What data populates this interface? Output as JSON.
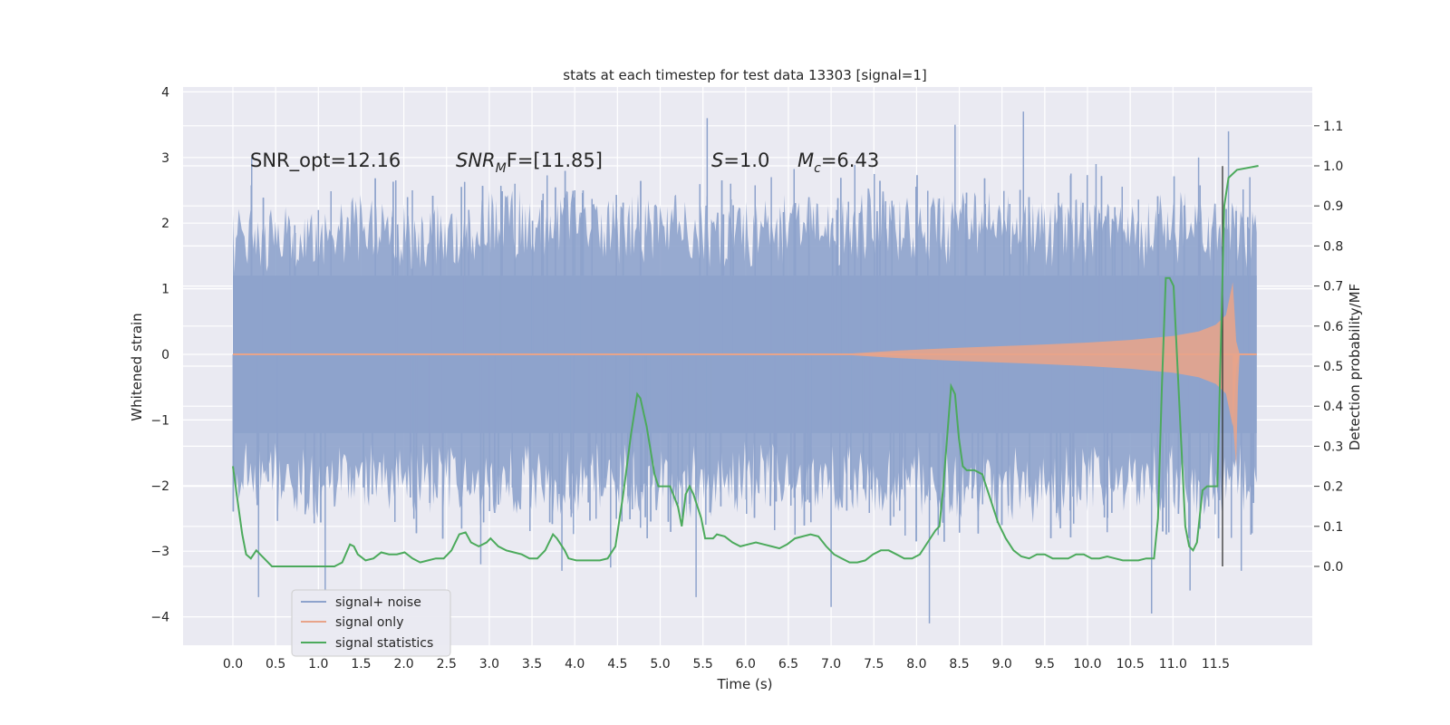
{
  "chart_data": {
    "type": "line",
    "title": "stats at each timestep for test data 13303 [signal=1]",
    "xlabel": "Time (s)",
    "ylabel": "Whitened strain",
    "y2label": "Detection probability/MF",
    "xlim": [
      -0.58,
      12.45
    ],
    "ylim": [
      -4.45,
      4.1
    ],
    "y2lim": [
      -0.2,
      1.2
    ],
    "x_ticks": [
      "0.0",
      "0.5",
      "1.0",
      "1.5",
      "2.0",
      "2.5",
      "3.0",
      "3.5",
      "4.0",
      "4.5",
      "5.0",
      "5.5",
      "6.0",
      "6.5",
      "7.0",
      "7.5",
      "8.0",
      "8.5",
      "9.0",
      "9.5",
      "10.0",
      "10.5",
      "11.0",
      "11.5"
    ],
    "y_ticks": [
      "4",
      "3",
      "2",
      "1",
      "0",
      "−1",
      "−2",
      "−3",
      "−4"
    ],
    "y2_ticks": [
      "1.1",
      "1.0",
      "0.9",
      "0.8",
      "0.7",
      "0.6",
      "0.5",
      "0.4",
      "0.3",
      "0.2",
      "0.1",
      "0.0"
    ],
    "grid": true,
    "legend_position": "lower-left",
    "annotations": {
      "snr_opt": "SNR_opt=12.16",
      "snr_mf_label": "SNR",
      "snr_mf_sub": "M",
      "snr_mf_rest": "F=[11.85]",
      "s_label": "S",
      "s_value": "=1.0",
      "mc_label": "M",
      "mc_sub": "c",
      "mc_value": "=6.43"
    },
    "marker_line_x": 11.58,
    "series": [
      {
        "name": "signal+ noise",
        "color": "#8ea3cc",
        "t_range": [
          0.0,
          11.98
        ],
        "upper_envelope": [
          [
            0.0,
            2.2
          ],
          [
            0.5,
            2.3
          ],
          [
            1.0,
            2.2
          ],
          [
            1.5,
            2.5
          ],
          [
            2.0,
            2.3
          ],
          [
            2.5,
            2.3
          ],
          [
            3.0,
            2.6
          ],
          [
            3.5,
            2.5
          ],
          [
            4.0,
            2.5
          ],
          [
            4.5,
            2.4
          ],
          [
            5.0,
            2.6
          ],
          [
            5.5,
            2.3
          ],
          [
            6.0,
            2.4
          ],
          [
            6.5,
            2.5
          ],
          [
            7.0,
            2.4
          ],
          [
            7.5,
            2.6
          ],
          [
            8.0,
            2.4
          ],
          [
            8.5,
            2.5
          ],
          [
            9.0,
            2.5
          ],
          [
            9.5,
            2.4
          ],
          [
            10.0,
            2.4
          ],
          [
            10.5,
            2.3
          ],
          [
            11.0,
            2.5
          ],
          [
            11.5,
            2.4
          ],
          [
            11.98,
            2.2
          ]
        ],
        "lower_envelope": [
          [
            0.0,
            -2.2
          ],
          [
            0.5,
            -2.4
          ],
          [
            1.0,
            -2.5
          ],
          [
            1.5,
            -2.3
          ],
          [
            2.0,
            -2.4
          ],
          [
            2.5,
            -2.5
          ],
          [
            3.0,
            -2.5
          ],
          [
            3.5,
            -2.4
          ],
          [
            4.0,
            -2.5
          ],
          [
            4.5,
            -2.3
          ],
          [
            5.0,
            -2.5
          ],
          [
            5.5,
            -2.5
          ],
          [
            6.0,
            -2.4
          ],
          [
            6.5,
            -2.4
          ],
          [
            7.0,
            -2.4
          ],
          [
            7.5,
            -2.4
          ],
          [
            8.0,
            -2.5
          ],
          [
            8.5,
            -2.5
          ],
          [
            9.0,
            -2.5
          ],
          [
            9.5,
            -2.6
          ],
          [
            10.0,
            -2.5
          ],
          [
            10.5,
            -2.4
          ],
          [
            11.0,
            -2.4
          ],
          [
            11.5,
            -2.5
          ],
          [
            11.98,
            -2.4
          ]
        ],
        "peaks": [
          [
            0.22,
            3.0
          ],
          [
            1.0,
            2.2
          ],
          [
            2.1,
            2.5
          ],
          [
            3.3,
            2.6
          ],
          [
            4.0,
            2.5
          ],
          [
            5.55,
            3.6
          ],
          [
            6.3,
            2.7
          ],
          [
            8.45,
            3.5
          ],
          [
            9.25,
            3.7
          ],
          [
            10.1,
            2.9
          ],
          [
            11.3,
            3.0
          ],
          [
            11.65,
            3.4
          ],
          [
            11.9,
            2.7
          ]
        ],
        "troughs": [
          [
            0.3,
            -3.7
          ],
          [
            1.08,
            -3.6
          ],
          [
            2.9,
            -3.2
          ],
          [
            3.85,
            -3.3
          ],
          [
            4.42,
            -3.25
          ],
          [
            5.42,
            -3.7
          ],
          [
            7.0,
            -3.85
          ],
          [
            8.15,
            -4.1
          ],
          [
            10.75,
            -3.95
          ],
          [
            11.2,
            -3.6
          ],
          [
            11.8,
            -3.3
          ]
        ]
      },
      {
        "name": "signal only",
        "color": "#e8a48a",
        "envelope": [
          [
            0.0,
            0.0
          ],
          [
            6.8,
            0.0
          ],
          [
            7.2,
            0.01
          ],
          [
            7.8,
            0.06
          ],
          [
            8.5,
            0.1
          ],
          [
            9.5,
            0.15
          ],
          [
            10.0,
            0.18
          ],
          [
            10.5,
            0.22
          ],
          [
            11.0,
            0.28
          ],
          [
            11.3,
            0.35
          ],
          [
            11.5,
            0.45
          ],
          [
            11.62,
            0.6
          ],
          [
            11.7,
            1.1
          ],
          [
            11.74,
            0.2
          ],
          [
            11.78,
            0.0
          ],
          [
            11.98,
            0.0
          ]
        ],
        "lower_tail": [
          [
            11.7,
            -1.0
          ],
          [
            11.74,
            -1.7
          ],
          [
            11.76,
            -0.5
          ],
          [
            11.78,
            0.0
          ]
        ]
      },
      {
        "name": "signal statistics",
        "color": "#4caa5c",
        "axis": "right",
        "points": [
          [
            0.0,
            0.25
          ],
          [
            0.07,
            0.15
          ],
          [
            0.12,
            0.08
          ],
          [
            0.17,
            0.03
          ],
          [
            0.23,
            0.02
          ],
          [
            0.3,
            0.04
          ],
          [
            0.4,
            0.02
          ],
          [
            0.5,
            0.0
          ],
          [
            0.6,
            0.0
          ],
          [
            0.7,
            0.0
          ],
          [
            0.8,
            0.0
          ],
          [
            0.9,
            0.0
          ],
          [
            1.0,
            0.0
          ],
          [
            1.1,
            0.0
          ],
          [
            1.2,
            0.0
          ],
          [
            1.3,
            0.0
          ],
          [
            1.4,
            0.01
          ],
          [
            1.5,
            0.055
          ],
          [
            1.55,
            0.05
          ],
          [
            1.6,
            0.03
          ],
          [
            1.7,
            0.015
          ],
          [
            1.8,
            0.02
          ],
          [
            1.9,
            0.035
          ],
          [
            2.0,
            0.03
          ],
          [
            2.1,
            0.03
          ],
          [
            2.2,
            0.035
          ],
          [
            2.3,
            0.02
          ],
          [
            2.4,
            0.01
          ],
          [
            2.5,
            0.015
          ],
          [
            2.6,
            0.02
          ],
          [
            2.7,
            0.02
          ],
          [
            2.8,
            0.04
          ],
          [
            2.9,
            0.08
          ],
          [
            2.98,
            0.085
          ],
          [
            3.05,
            0.06
          ],
          [
            3.15,
            0.05
          ],
          [
            3.25,
            0.06
          ],
          [
            3.3,
            0.07
          ],
          [
            3.4,
            0.05
          ],
          [
            3.5,
            0.04
          ],
          [
            3.6,
            0.035
          ],
          [
            3.7,
            0.03
          ],
          [
            3.8,
            0.02
          ],
          [
            3.9,
            0.02
          ],
          [
            4.0,
            0.04
          ],
          [
            4.1,
            0.08
          ],
          [
            4.15,
            0.07
          ],
          [
            4.25,
            0.04
          ],
          [
            4.3,
            0.02
          ],
          [
            4.4,
            0.015
          ],
          [
            4.5,
            0.015
          ],
          [
            4.6,
            0.015
          ],
          [
            4.7,
            0.015
          ],
          [
            4.8,
            0.02
          ],
          [
            4.9,
            0.05
          ],
          [
            5.0,
            0.18
          ],
          [
            5.1,
            0.33
          ],
          [
            5.18,
            0.43
          ],
          [
            5.22,
            0.42
          ],
          [
            5.3,
            0.35
          ],
          [
            5.4,
            0.23
          ],
          [
            5.45,
            0.2
          ],
          [
            5.5,
            0.2
          ],
          [
            5.6,
            0.2
          ],
          [
            5.7,
            0.15
          ],
          [
            5.75,
            0.1
          ],
          [
            5.8,
            0.18
          ],
          [
            5.85,
            0.2
          ],
          [
            5.9,
            0.18
          ],
          [
            6.0,
            0.12
          ],
          [
            6.05,
            0.07
          ],
          [
            6.15,
            0.07
          ],
          [
            6.2,
            0.08
          ],
          [
            6.3,
            0.075
          ],
          [
            6.4,
            0.06
          ],
          [
            6.5,
            0.05
          ],
          [
            6.6,
            0.055
          ],
          [
            6.7,
            0.06
          ],
          [
            6.8,
            0.055
          ],
          [
            6.9,
            0.05
          ],
          [
            7.0,
            0.045
          ],
          [
            7.1,
            0.055
          ],
          [
            7.2,
            0.07
          ],
          [
            7.3,
            0.075
          ],
          [
            7.4,
            0.08
          ],
          [
            7.5,
            0.075
          ],
          [
            7.6,
            0.05
          ],
          [
            7.7,
            0.03
          ],
          [
            7.8,
            0.02
          ],
          [
            7.9,
            0.01
          ],
          [
            8.0,
            0.01
          ],
          [
            8.1,
            0.015
          ],
          [
            8.2,
            0.03
          ],
          [
            8.3,
            0.04
          ],
          [
            8.4,
            0.04
          ],
          [
            8.5,
            0.03
          ],
          [
            8.6,
            0.02
          ],
          [
            8.7,
            0.02
          ],
          [
            8.8,
            0.03
          ],
          [
            8.9,
            0.06
          ],
          [
            9.0,
            0.09
          ],
          [
            9.05,
            0.1
          ],
          [
            9.1,
            0.2
          ],
          [
            9.2,
            0.45
          ],
          [
            9.25,
            0.43
          ],
          [
            9.3,
            0.32
          ],
          [
            9.35,
            0.25
          ],
          [
            9.4,
            0.24
          ],
          [
            9.5,
            0.24
          ],
          [
            9.6,
            0.23
          ],
          [
            9.7,
            0.17
          ],
          [
            9.8,
            0.11
          ],
          [
            9.9,
            0.07
          ],
          [
            10.0,
            0.04
          ],
          [
            10.1,
            0.025
          ],
          [
            10.2,
            0.02
          ],
          [
            10.3,
            0.03
          ],
          [
            10.4,
            0.03
          ],
          [
            10.5,
            0.02
          ],
          [
            10.6,
            0.02
          ],
          [
            10.7,
            0.02
          ],
          [
            10.8,
            0.03
          ],
          [
            10.9,
            0.03
          ],
          [
            11.0,
            0.02
          ],
          [
            11.1,
            0.02
          ],
          [
            11.2,
            0.025
          ],
          [
            11.3,
            0.02
          ],
          [
            11.4,
            0.015
          ],
          [
            11.5,
            0.015
          ],
          [
            11.6,
            0.015
          ],
          [
            11.7,
            0.02
          ],
          [
            11.8,
            0.02
          ],
          [
            11.85,
            0.12
          ],
          [
            11.9,
            0.45
          ],
          [
            11.95,
            0.72
          ],
          [
            12.0,
            0.72
          ],
          [
            12.05,
            0.7
          ],
          [
            12.1,
            0.5
          ],
          [
            12.15,
            0.3
          ],
          [
            12.2,
            0.1
          ],
          [
            12.25,
            0.05
          ],
          [
            12.3,
            0.04
          ],
          [
            12.35,
            0.06
          ],
          [
            12.42,
            0.19
          ],
          [
            12.48,
            0.2
          ]
        ]
      }
    ]
  }
}
